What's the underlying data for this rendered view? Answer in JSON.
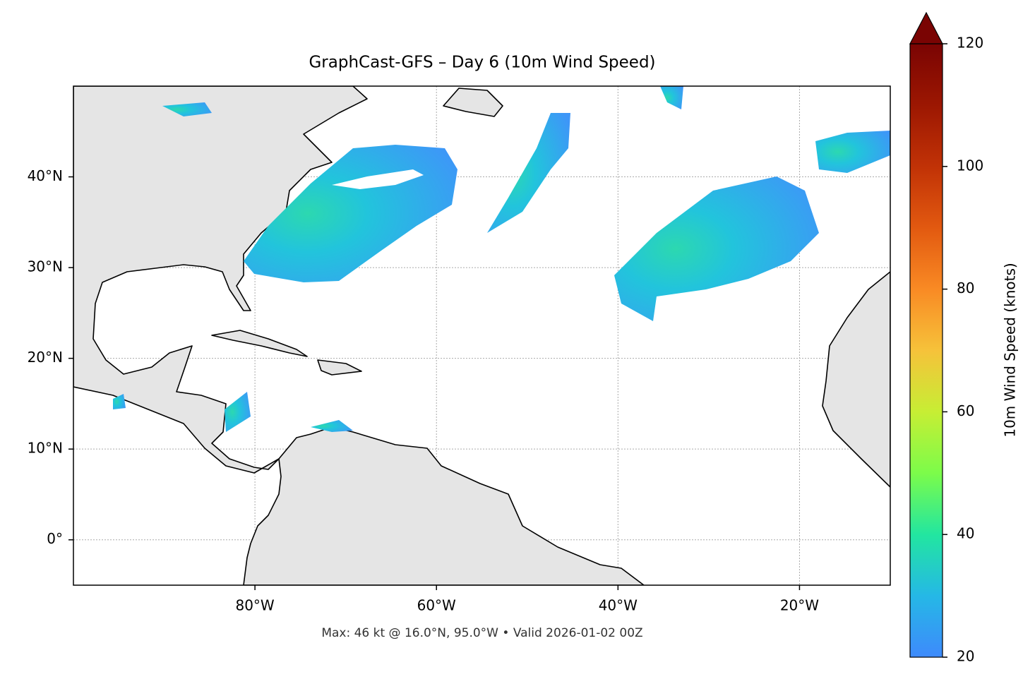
{
  "chart_data": {
    "type": "map",
    "title": "GraphCast-GFS – Day 6 (10m Wind Speed)",
    "footer": "Max: 46 kt @ 16.0°N, 95.0°W • Valid 2026-01-02 00Z",
    "xlim": [
      -100,
      -10
    ],
    "ylim": [
      -5,
      50
    ],
    "xticks": [
      {
        "value": -80,
        "label": "80°W"
      },
      {
        "value": -60,
        "label": "60°W"
      },
      {
        "value": -40,
        "label": "40°W"
      },
      {
        "value": -20,
        "label": "20°W"
      }
    ],
    "yticks": [
      {
        "value": 0,
        "label": "0°"
      },
      {
        "value": 10,
        "label": "10°N"
      },
      {
        "value": 20,
        "label": "20°N"
      },
      {
        "value": 30,
        "label": "30°N"
      },
      {
        "value": 40,
        "label": "40°N"
      }
    ],
    "grid": true,
    "colorbar": {
      "label": "10m Wind Speed (knots)",
      "lim": [
        20,
        120
      ],
      "ticks": [
        20,
        40,
        60,
        80,
        100,
        120
      ],
      "extend": "max"
    }
  }
}
